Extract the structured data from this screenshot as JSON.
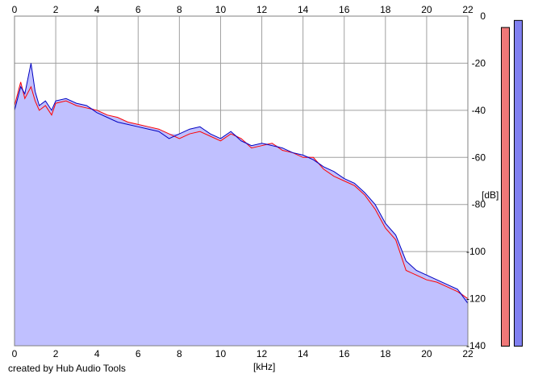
{
  "chart_data": {
    "type": "area",
    "xlabel": "[kHz]",
    "ylabel": "[dB]",
    "credit": "created by Hub Audio Tools",
    "xlim": [
      0,
      22
    ],
    "ylim": [
      -140,
      0
    ],
    "x_ticks": [
      0,
      2,
      4,
      6,
      8,
      10,
      12,
      14,
      16,
      18,
      20,
      22
    ],
    "y_ticks": [
      0,
      -20,
      -40,
      -60,
      -80,
      -100,
      -120,
      -140
    ],
    "grid": true,
    "fill_color": "#c0c0ff",
    "series": [
      {
        "color": "#ff0000",
        "x": [
          0,
          0.3,
          0.5,
          0.8,
          1.0,
          1.2,
          1.5,
          1.8,
          2.0,
          2.5,
          3.0,
          3.5,
          4.0,
          4.5,
          5.0,
          5.5,
          6.0,
          6.5,
          7.0,
          7.5,
          8.0,
          8.5,
          9.0,
          9.5,
          10.0,
          10.5,
          11.0,
          11.5,
          12.0,
          12.5,
          13.0,
          13.5,
          14.0,
          14.5,
          15.0,
          15.5,
          16.0,
          16.5,
          17.0,
          17.5,
          18.0,
          18.5,
          19.0,
          19.5,
          20.0,
          20.5,
          21.0,
          21.5,
          22.0
        ],
        "y": [
          -38,
          -28,
          -35,
          -30,
          -36,
          -40,
          -38,
          -42,
          -37,
          -36,
          -38,
          -39,
          -40,
          -42,
          -43,
          -45,
          -46,
          -47,
          -48,
          -50,
          -52,
          -50,
          -49,
          -51,
          -53,
          -50,
          -52,
          -56,
          -55,
          -54,
          -57,
          -58,
          -60,
          -60,
          -65,
          -68,
          -70,
          -72,
          -76,
          -82,
          -90,
          -95,
          -108,
          -110,
          -112,
          -113,
          -115,
          -117,
          -120
        ]
      },
      {
        "color": "#0000c0",
        "x": [
          0,
          0.3,
          0.5,
          0.8,
          1.0,
          1.2,
          1.5,
          1.8,
          2.0,
          2.5,
          3.0,
          3.5,
          4.0,
          4.5,
          5.0,
          5.5,
          6.0,
          6.5,
          7.0,
          7.5,
          8.0,
          8.5,
          9.0,
          9.5,
          10.0,
          10.5,
          11.0,
          11.5,
          12.0,
          12.5,
          13.0,
          13.5,
          14.0,
          14.5,
          15.0,
          15.5,
          16.0,
          16.5,
          17.0,
          17.5,
          18.0,
          18.5,
          19.0,
          19.5,
          20.0,
          20.5,
          21.0,
          21.5,
          22.0
        ],
        "y": [
          -40,
          -30,
          -33,
          -20,
          -32,
          -38,
          -36,
          -40,
          -36,
          -35,
          -37,
          -38,
          -41,
          -43,
          -45,
          -46,
          -47,
          -48,
          -49,
          -52,
          -50,
          -48,
          -47,
          -50,
          -52,
          -49,
          -53,
          -55,
          -54,
          -55,
          -56,
          -58,
          -59,
          -61,
          -64,
          -66,
          -69,
          -71,
          -75,
          -80,
          -88,
          -93,
          -104,
          -108,
          -110,
          -112,
          -114,
          -116,
          -122
        ]
      }
    ],
    "meters": [
      {
        "color": "#f07878",
        "level_db": -5
      },
      {
        "color": "#8080f0",
        "level_db": -2
      }
    ]
  }
}
